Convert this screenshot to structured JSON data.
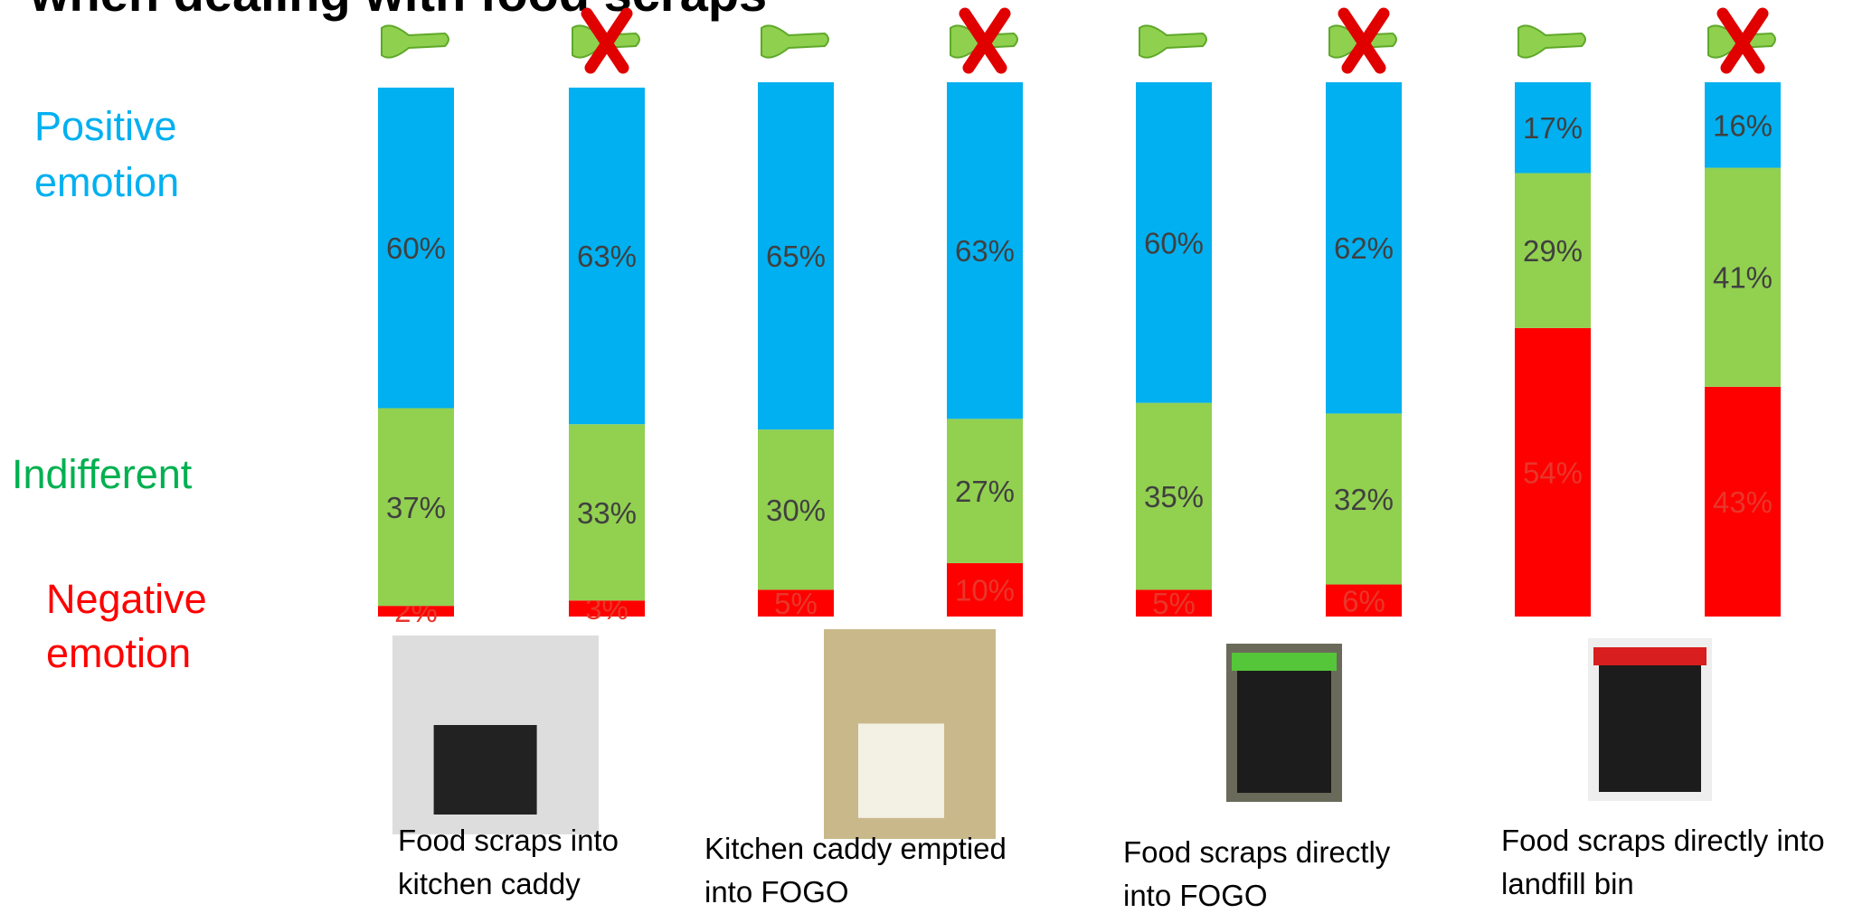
{
  "chart_data": {
    "type": "stacked_bar",
    "title": "when dealing with food scraps",
    "categories": [
      null,
      null,
      null,
      null,
      null,
      null,
      null,
      null
    ],
    "ylim": [
      0,
      100
    ],
    "series": [
      {
        "name": "Negative emotion",
        "color": "#ff0000",
        "label_color": "#e8362b",
        "values": [
          2,
          3,
          5,
          10,
          5,
          6,
          54,
          43
        ],
        "value_labels": [
          "2%",
          "3%",
          "5%",
          "10%",
          "5%",
          "6%",
          "54%",
          "43%"
        ]
      },
      {
        "name": "Indifferent",
        "color": "#92d050",
        "label_color": "#404040",
        "values": [
          37,
          33,
          30,
          27,
          35,
          32,
          29,
          41
        ],
        "value_labels": [
          "37%",
          "33%",
          "30%",
          "27%",
          "35%",
          "32%",
          "29%",
          "41%"
        ]
      },
      {
        "name": "Positive emotion",
        "color": "#00b0f0",
        "label_color": "#404040",
        "values": [
          60,
          63,
          65,
          63,
          60,
          62,
          17,
          16
        ],
        "value_labels": [
          "60%",
          "63%",
          "65%",
          "63%",
          "60%",
          "62%",
          "17%",
          "16%"
        ]
      }
    ],
    "legend_colors": [
      "#ff0000",
      "#00b050",
      "#00b0f0"
    ],
    "group_labels": [
      [
        "Food scraps into",
        "kitchen caddy"
      ],
      [
        "Kitchen caddy emptied",
        "into FOGO"
      ],
      [
        "Food scraps directly",
        "into FOGO"
      ],
      [
        "Food scraps directly into",
        "landfill bin"
      ]
    ]
  }
}
